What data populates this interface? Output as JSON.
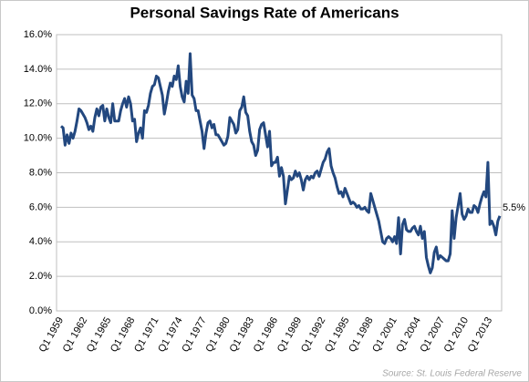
{
  "chart_data": {
    "type": "line",
    "title": "Personal Savings Rate of Americans",
    "source": "Source: St. Louis Federal Reserve",
    "annotation": "5.5%",
    "color": "#23487f",
    "grid": true,
    "ylim": [
      0,
      16
    ],
    "yticks": [
      {
        "value": 0,
        "label": "0.0%"
      },
      {
        "value": 2,
        "label": "2.0%"
      },
      {
        "value": 4,
        "label": "4.0%"
      },
      {
        "value": 6,
        "label": "6.0%"
      },
      {
        "value": 8,
        "label": "8.0%"
      },
      {
        "value": 10,
        "label": "10.0%"
      },
      {
        "value": 12,
        "label": "12.0%"
      },
      {
        "value": 14,
        "label": "14.0%"
      },
      {
        "value": 16,
        "label": "16.0%"
      }
    ],
    "categories": [
      "Q1 1959",
      null,
      null,
      null,
      null,
      null,
      null,
      null,
      null,
      null,
      null,
      null,
      "Q1 1962",
      null,
      null,
      null,
      null,
      null,
      null,
      null,
      null,
      null,
      null,
      null,
      "Q1 1965",
      null,
      null,
      null,
      null,
      null,
      null,
      null,
      null,
      null,
      null,
      null,
      "Q1 1968",
      null,
      null,
      null,
      null,
      null,
      null,
      null,
      null,
      null,
      null,
      null,
      "Q1 1971",
      null,
      null,
      null,
      null,
      null,
      null,
      null,
      null,
      null,
      null,
      null,
      "Q1 1974",
      null,
      null,
      null,
      null,
      null,
      null,
      null,
      null,
      null,
      null,
      null,
      "Q1 1977",
      null,
      null,
      null,
      null,
      null,
      null,
      null,
      null,
      null,
      null,
      null,
      "Q1 1980",
      null,
      null,
      null,
      null,
      null,
      null,
      null,
      null,
      null,
      null,
      null,
      "Q1 1983",
      null,
      null,
      null,
      null,
      null,
      null,
      null,
      null,
      null,
      null,
      null,
      "Q1 1986",
      null,
      null,
      null,
      null,
      null,
      null,
      null,
      null,
      null,
      null,
      null,
      "Q1 1989",
      null,
      null,
      null,
      null,
      null,
      null,
      null,
      null,
      null,
      null,
      null,
      "Q1 1992",
      null,
      null,
      null,
      null,
      null,
      null,
      null,
      null,
      null,
      null,
      null,
      "Q1 1995",
      null,
      null,
      null,
      null,
      null,
      null,
      null,
      null,
      null,
      null,
      null,
      "Q1 1998",
      null,
      null,
      null,
      null,
      null,
      null,
      null,
      null,
      null,
      null,
      null,
      "Q1 2001",
      null,
      null,
      null,
      null,
      null,
      null,
      null,
      null,
      null,
      null,
      null,
      "Q1 2004",
      null,
      null,
      null,
      null,
      null,
      null,
      null,
      null,
      null,
      null,
      null,
      "Q1 2007",
      null,
      null,
      null,
      null,
      null,
      null,
      null,
      null,
      null,
      null,
      null,
      "Q1 2010",
      null,
      null,
      null,
      null,
      null,
      null,
      null,
      null,
      null,
      null,
      null,
      "Q1 2013",
      null,
      null,
      null,
      null,
      null
    ],
    "values": [
      10.7,
      10.6,
      9.6,
      10.2,
      9.7,
      10.3,
      10.0,
      10.4,
      11.0,
      11.7,
      11.6,
      11.4,
      11.2,
      10.9,
      10.5,
      10.7,
      10.4,
      11.2,
      11.7,
      11.3,
      11.8,
      11.9,
      11.0,
      11.7,
      11.2,
      10.9,
      12.0,
      11.0,
      11.0,
      11.0,
      11.6,
      12.0,
      12.3,
      11.8,
      12.4,
      12.0,
      11.0,
      11.1,
      9.8,
      10.3,
      10.6,
      10.0,
      11.6,
      11.5,
      11.9,
      12.6,
      13.0,
      13.1,
      13.6,
      13.5,
      13.0,
      12.5,
      11.4,
      12.0,
      12.7,
      13.2,
      13.0,
      13.6,
      13.4,
      14.2,
      13.0,
      12.4,
      12.1,
      13.3,
      12.6,
      14.9,
      12.5,
      12.3,
      11.6,
      11.6,
      11.0,
      10.4,
      9.4,
      10.3,
      10.9,
      11.0,
      10.6,
      10.8,
      10.2,
      10.2,
      10.0,
      9.8,
      9.6,
      9.7,
      10.1,
      11.2,
      11.0,
      10.8,
      10.3,
      10.5,
      11.6,
      11.8,
      12.4,
      11.5,
      11.3,
      10.4,
      9.8,
      9.6,
      9.0,
      9.3,
      10.5,
      10.8,
      10.9,
      10.2,
      9.5,
      10.4,
      8.4,
      8.6,
      8.6,
      8.9,
      7.8,
      8.3,
      7.8,
      6.2,
      7.0,
      7.8,
      7.6,
      7.7,
      8.1,
      7.8,
      8.0,
      7.6,
      7.0,
      7.6,
      7.8,
      7.6,
      7.8,
      7.7,
      8.0,
      8.1,
      7.8,
      8.2,
      8.6,
      8.8,
      9.2,
      9.4,
      8.4,
      8.0,
      7.7,
      7.2,
      6.8,
      6.9,
      6.6,
      7.1,
      6.8,
      6.5,
      6.2,
      6.3,
      6.2,
      6.0,
      6.1,
      5.9,
      5.9,
      6.0,
      5.8,
      5.7,
      6.8,
      6.4,
      6.0,
      5.6,
      5.2,
      4.6,
      4.0,
      3.9,
      4.2,
      4.3,
      4.2,
      4.0,
      4.3,
      3.9,
      5.4,
      3.3,
      5.0,
      5.3,
      4.7,
      4.6,
      4.6,
      4.8,
      4.9,
      4.6,
      4.4,
      4.9,
      4.2,
      4.6,
      3.1,
      2.6,
      2.2,
      2.5,
      3.4,
      3.7,
      3.0,
      3.2,
      3.1,
      3.0,
      2.9,
      2.9,
      3.3,
      5.8,
      4.2,
      5.4,
      6.1,
      6.8,
      5.6,
      5.3,
      5.5,
      5.9,
      5.7,
      5.7,
      6.1,
      6.0,
      5.7,
      6.2,
      6.6,
      6.9,
      6.6,
      8.6,
      5.0,
      5.2,
      4.9,
      4.4,
      5.2,
      5.5
    ]
  }
}
